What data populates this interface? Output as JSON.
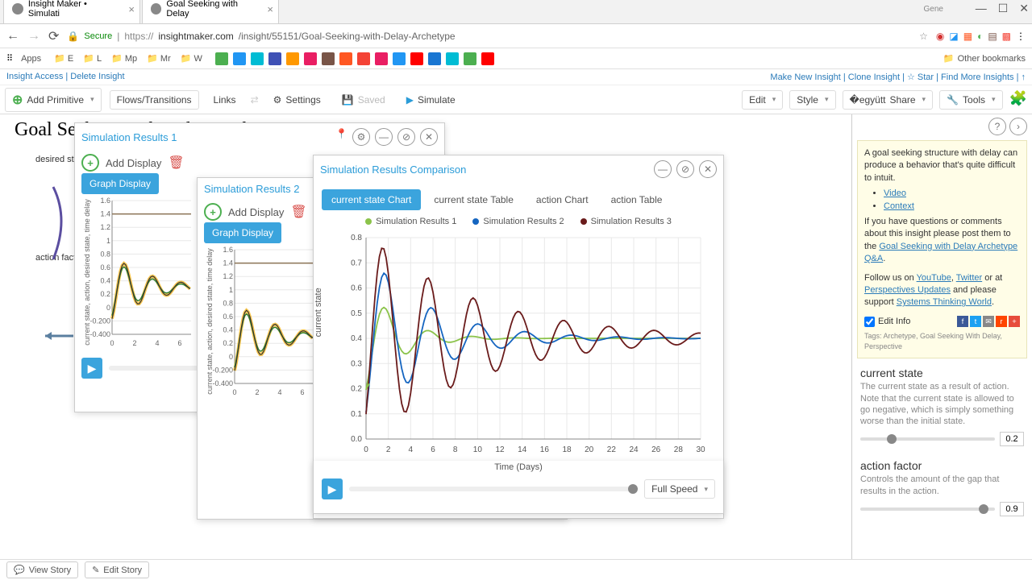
{
  "browser": {
    "tabs": [
      {
        "title": "Insight Maker • Simulati",
        "favicon": "#5a5a5a"
      },
      {
        "title": "Goal Seeking with Delay",
        "favicon": "#5a5a5a"
      }
    ],
    "user": "Gene",
    "secure_label": "Secure",
    "url_prefix": "https://",
    "url_host": "insightmaker.com",
    "url_path": "/insight/55151/Goal-Seeking-with-Delay-Archetype",
    "apps_label": "Apps",
    "other_bookmarks": "Other bookmarks",
    "bookmark_letters": [
      "E",
      "L",
      "Mp",
      "Mr",
      "W"
    ],
    "bookmark_colors": [
      "#4caf50",
      "#2196f3",
      "#00bcd4",
      "#3f51b5",
      "#ff9800",
      "#e91e63",
      "#795548",
      "#ff5722",
      "#f44336",
      "#e91e63",
      "#2196f3",
      "#ff0000",
      "#1976d2",
      "#00bcd4",
      "#4caf50",
      "#ff0000"
    ]
  },
  "app_top": {
    "left": "Insight Access | Delete Insight",
    "right": "Make New Insight | Clone Insight | ☆ Star | Find More Insights | ↑"
  },
  "toolbar": {
    "add_primitive": "Add Primitive",
    "flows": "Flows/Transitions",
    "links": "Links",
    "settings": "Settings",
    "saved": "Saved",
    "simulate": "Simulate",
    "edit": "Edit",
    "style": "Style",
    "share": "Share",
    "tools": "Tools"
  },
  "page_title": "Goal Seeking with Delay Archetype",
  "diagram": {
    "label1": "desired state",
    "label2": "action factor"
  },
  "panel1": {
    "title": "Simulation Results 1",
    "add_display": "Add Display",
    "graph_display": "Graph Display",
    "mini_chart": {
      "y_ticks": [
        "1.6",
        "1.4",
        "1.2",
        "1",
        "0.8",
        "0.6",
        "0.4",
        "0.2",
        "0",
        "-0.200",
        "-0.400"
      ],
      "x_ticks": [
        "0",
        "2",
        "4",
        "6"
      ],
      "ylabel": "current state, action, desired state, time delay",
      "colors": {
        "line1": "#8b7355",
        "line2": "#2e7d32",
        "line3": "#f9c74f",
        "line4": "#333"
      }
    }
  },
  "panel2": {
    "title": "Simulation Results 2",
    "add_display": "Add Display",
    "graph_display": "Graph Display",
    "mini_chart": {
      "y_ticks": [
        "1.6",
        "1.4",
        "1.2",
        "1",
        "0.8",
        "0.6",
        "0.4",
        "0.2",
        "0",
        "-0.200",
        "-0.400"
      ],
      "x_ticks": [
        "0",
        "2",
        "4",
        "6"
      ]
    }
  },
  "panel3": {
    "title": "Simulation Results Comparison",
    "tabs": [
      "current state Chart",
      "current state Table",
      "action Chart",
      "action Table"
    ],
    "legend": [
      {
        "label": "Simulation Results 1",
        "color": "#8bc34a"
      },
      {
        "label": "Simulation Results 2",
        "color": "#1565c0"
      },
      {
        "label": "Simulation Results 3",
        "color": "#6a1b1b"
      }
    ],
    "chart": {
      "y_ticks": [
        "0.8",
        "0.7",
        "0.6",
        "0.5",
        "0.4",
        "0.3",
        "0.2",
        "0.1",
        "0.0"
      ],
      "x_ticks": [
        "0",
        "2",
        "4",
        "6",
        "8",
        "10",
        "12",
        "14",
        "16",
        "18",
        "20",
        "22",
        "24",
        "26",
        "28",
        "30"
      ],
      "ylabel": "current state",
      "xlabel": "Time",
      "ylim": [
        0,
        0.8
      ],
      "xlim": [
        0,
        30
      ],
      "bg": "#ffffff",
      "grid": "#e8e8e8",
      "series1_color": "#8bc34a",
      "series2_color": "#1565c0",
      "series3_color": "#6a1b1b"
    },
    "time_label": "Time (Days)",
    "full_speed": "Full Speed"
  },
  "sidebar": {
    "note_p1": "A goal seeking structure with delay can produce a behavior that's quite difficult to intuit.",
    "video": "Video",
    "context": "Context",
    "note_p2a": "If you have questions or comments about this insight please post them to the ",
    "note_p2_link": "Goal Seeking with Delay Archetype Q&A",
    "note_p3a": "Follow us on ",
    "youtube": "YouTube",
    "twitter": "Twitter",
    "note_p3b": " or at ",
    "perspectives": "Perspectives Updates",
    "note_p3c": " and please support ",
    "stw": "Systems Thinking World",
    "edit_info": "Edit Info",
    "tags": "Tags: Archetype, Goal Seeking With Delay, Perspective",
    "ctrl1_title": "current state",
    "ctrl1_desc": "The current state as a result of action. Note that the current state is allowed to go negative, which is simply something worse than the initial state.",
    "ctrl1_val": "0.2",
    "ctrl2_title": "action factor",
    "ctrl2_desc": "Controls the amount of the gap that results in the action.",
    "ctrl2_val": "0.9"
  },
  "bottom": {
    "view_story": "View Story",
    "edit_story": "Edit Story"
  }
}
